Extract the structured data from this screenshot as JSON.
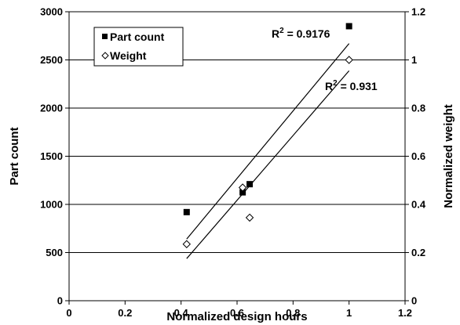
{
  "chart_data": {
    "type": "scatter",
    "xlabel": "Normalized design hours",
    "ylabel": "Part count",
    "y2label": "Normalized weight",
    "xlim": [
      0,
      1.2
    ],
    "ylim": [
      0,
      3000
    ],
    "y2lim": [
      0,
      1.2
    ],
    "x_ticks": [
      "0",
      "0.2",
      "0.4",
      "0.6",
      "0.8",
      "1",
      "1.2"
    ],
    "y_ticks": [
      "0",
      "500",
      "1000",
      "1500",
      "2000",
      "2500",
      "3000"
    ],
    "y2_ticks": [
      "0",
      "0.2",
      "0.4",
      "0.6",
      "0.8",
      "1",
      "1.2"
    ],
    "grid": "horizontal",
    "legend_position": "top-left",
    "series": [
      {
        "name": "Part count",
        "axis": "left",
        "marker": "filled-square",
        "color": "#000000",
        "points": [
          {
            "x": 0.42,
            "y": 920
          },
          {
            "x": 0.62,
            "y": 1125
          },
          {
            "x": 0.645,
            "y": 1210
          },
          {
            "x": 1.0,
            "y": 2850
          }
        ],
        "trendline": {
          "x_range": [
            0.42,
            1.0
          ],
          "y_range": [
            640,
            2670
          ]
        },
        "r2_label": "R",
        "r2_value": " = 0.9176"
      },
      {
        "name": "Weight",
        "axis": "right",
        "marker": "open-diamond",
        "color": "#000000",
        "points": [
          {
            "x": 0.42,
            "y": 0.235
          },
          {
            "x": 0.62,
            "y": 0.47
          },
          {
            "x": 0.645,
            "y": 0.345
          },
          {
            "x": 1.0,
            "y": 1.0
          }
        ],
        "trendline": {
          "x_range": [
            0.42,
            1.0
          ],
          "y_range": [
            0.175,
            0.955
          ]
        },
        "r2_label": "R",
        "r2_value": " = 0.931"
      }
    ],
    "r2_superscript": "2"
  }
}
